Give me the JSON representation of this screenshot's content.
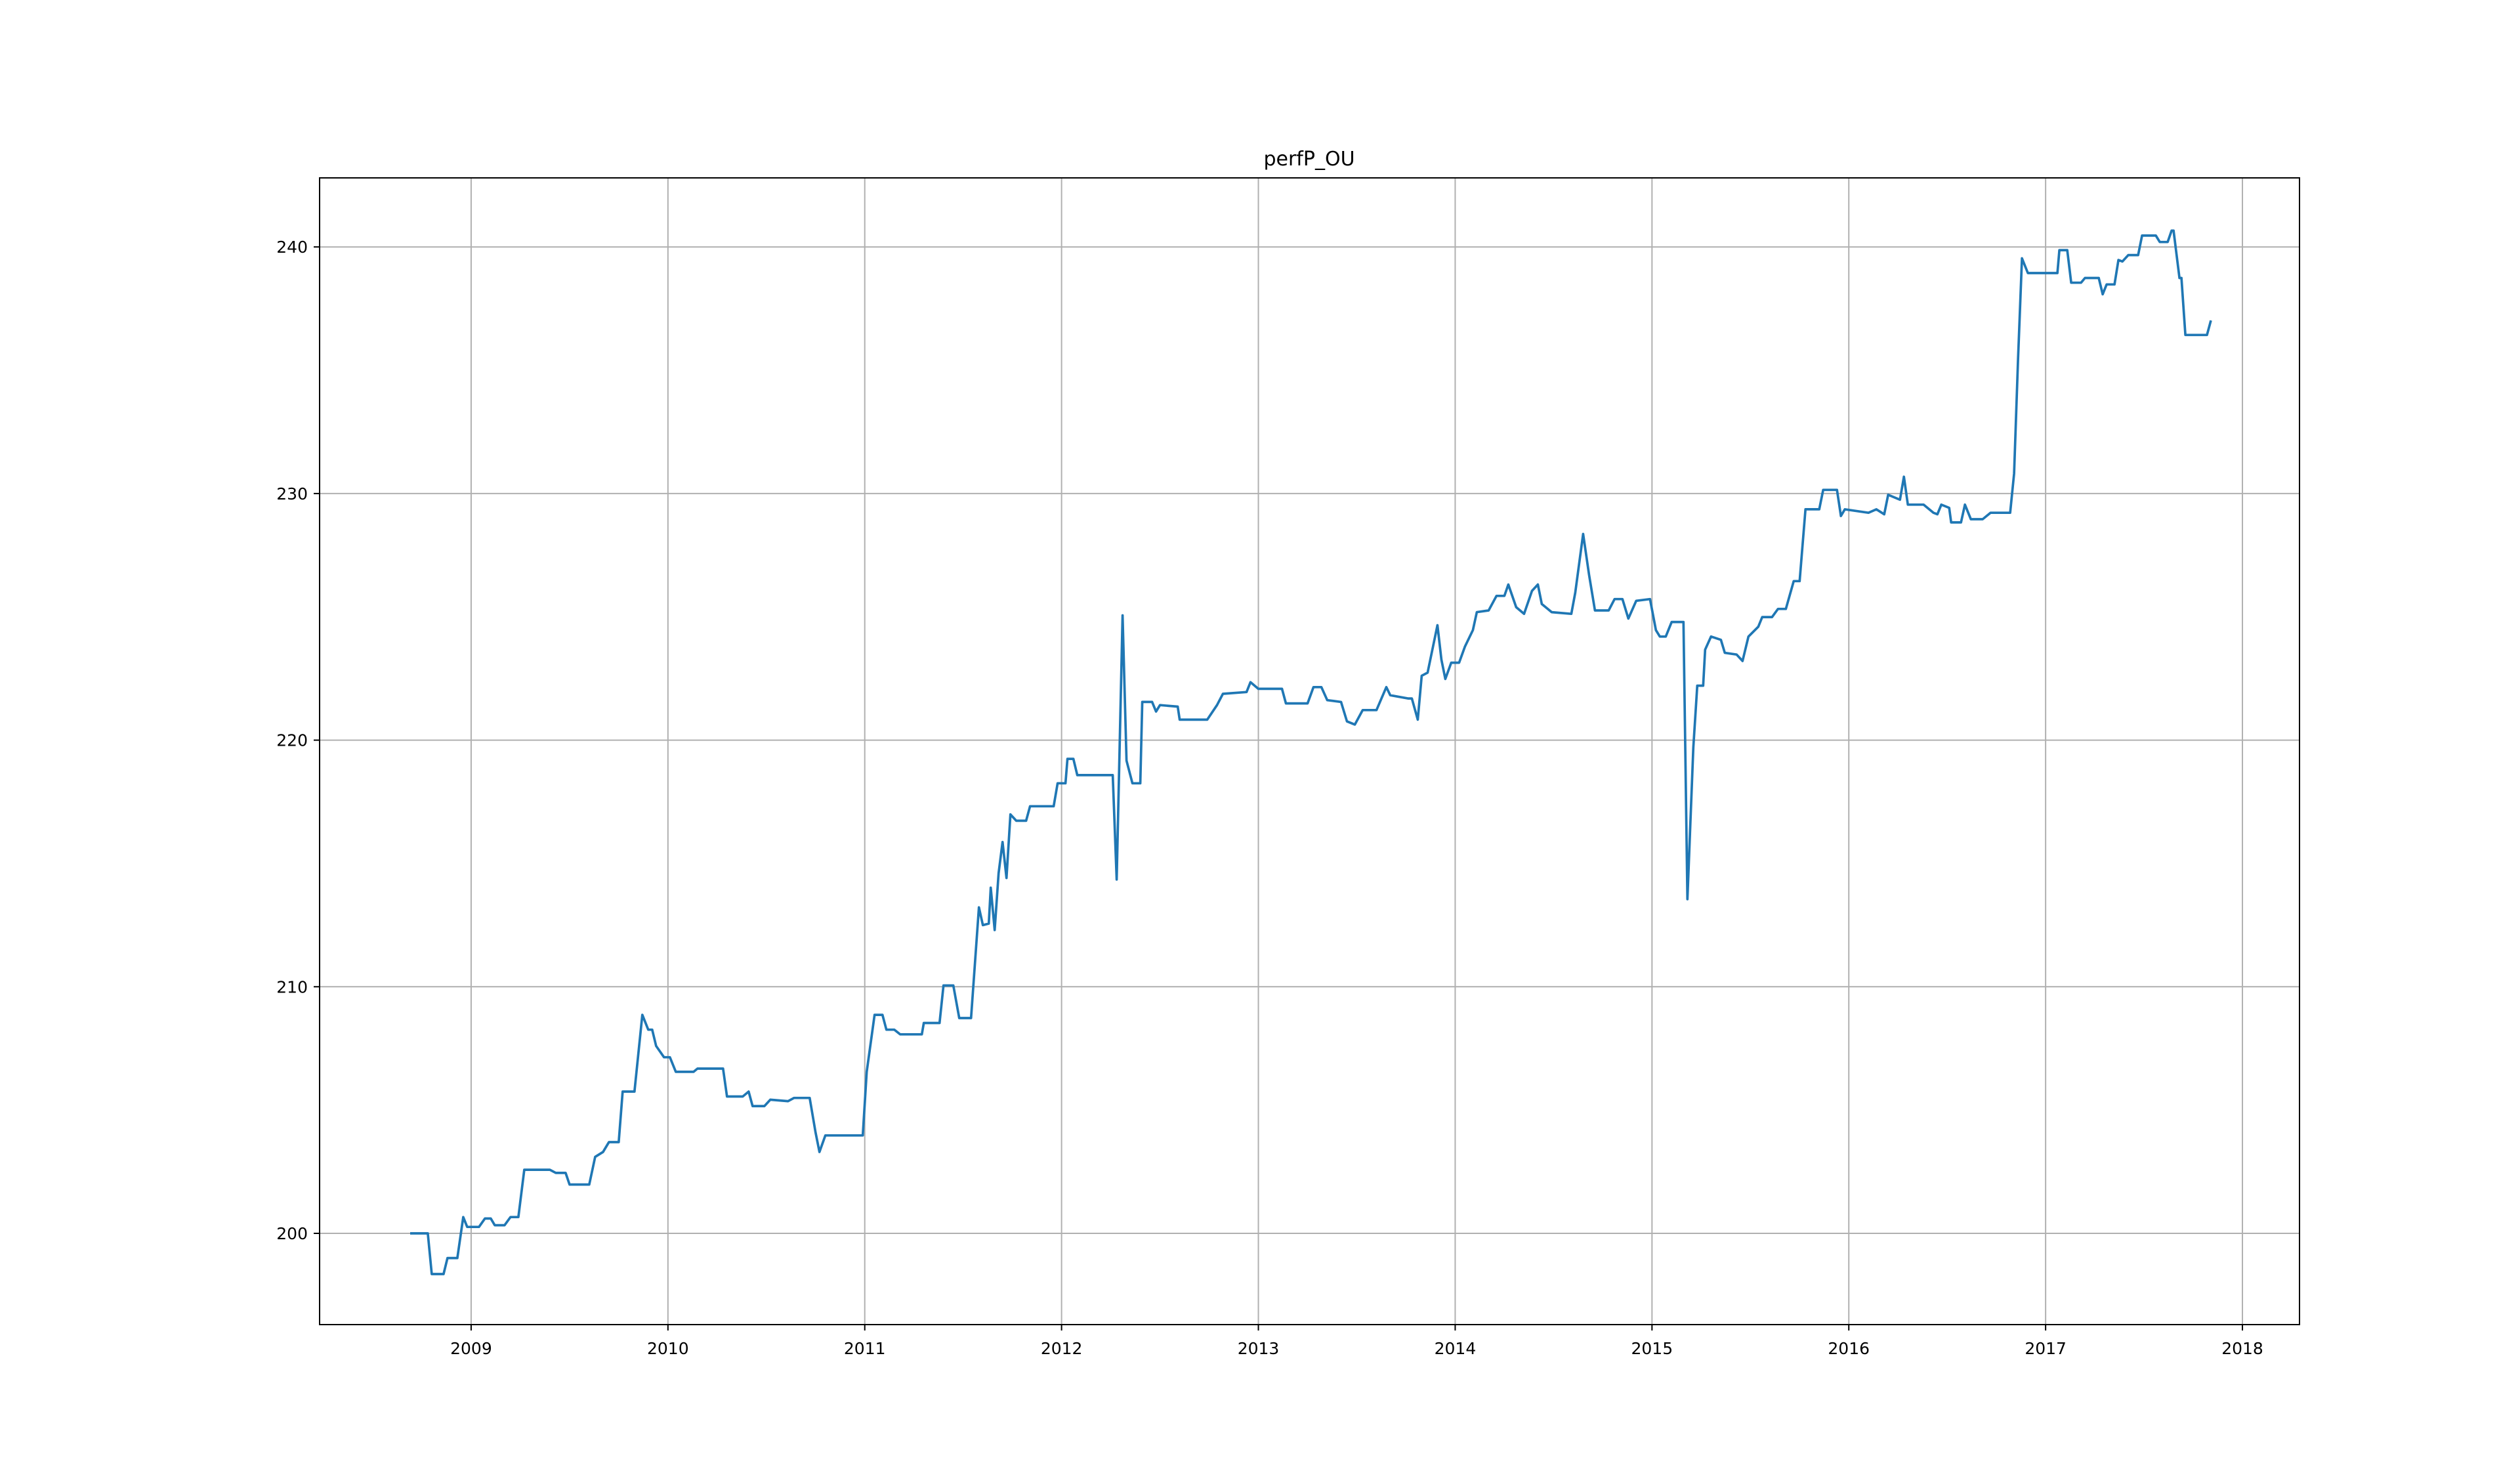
{
  "chart_data": {
    "type": "line",
    "title": "perfP_OU",
    "color": "#1f77b4",
    "grid": true,
    "xlim": [
      2008.23,
      2018.29
    ],
    "ylim": [
      196.3,
      242.8
    ],
    "xticks": [
      2009,
      2010,
      2011,
      2012,
      2013,
      2014,
      2015,
      2016,
      2017,
      2018
    ],
    "yticks": [
      200,
      210,
      220,
      230,
      240
    ],
    "x": [
      2008.69,
      2008.78,
      2008.8,
      2008.86,
      2008.88,
      2008.93,
      2008.96,
      2008.98,
      2009.04,
      2009.07,
      2009.1,
      2009.12,
      2009.17,
      2009.2,
      2009.24,
      2009.27,
      2009.4,
      2009.43,
      2009.48,
      2009.5,
      2009.6,
      2009.63,
      2009.67,
      2009.7,
      2009.75,
      2009.77,
      2009.83,
      2009.87,
      2009.9,
      2009.92,
      2009.94,
      2009.98,
      2010.01,
      2010.04,
      2010.13,
      2010.15,
      2010.28,
      2010.3,
      2010.38,
      2010.41,
      2010.43,
      2010.49,
      2010.52,
      2010.61,
      2010.64,
      2010.72,
      2010.75,
      2010.77,
      2010.8,
      2010.99,
      2011.01,
      2011.05,
      2011.09,
      2011.11,
      2011.15,
      2011.18,
      2011.29,
      2011.3,
      2011.38,
      2011.4,
      2011.45,
      2011.48,
      2011.54,
      2011.58,
      2011.6,
      2011.63,
      2011.64,
      2011.66,
      2011.68,
      2011.7,
      2011.72,
      2011.74,
      2011.77,
      2011.82,
      2011.84,
      2011.96,
      2011.98,
      2012.02,
      2012.03,
      2012.06,
      2012.08,
      2012.26,
      2012.28,
      2012.31,
      2012.33,
      2012.36,
      2012.4,
      2012.41,
      2012.46,
      2012.48,
      2012.5,
      2012.59,
      2012.6,
      2012.74,
      2012.79,
      2012.82,
      2012.94,
      2012.96,
      2013.0,
      2013.12,
      2013.14,
      2013.25,
      2013.28,
      2013.32,
      2013.35,
      2013.42,
      2013.45,
      2013.49,
      2013.53,
      2013.6,
      2013.65,
      2013.67,
      2013.76,
      2013.78,
      2013.81,
      2013.83,
      2013.86,
      2013.91,
      2013.93,
      2013.95,
      2013.98,
      2014.02,
      2014.05,
      2014.09,
      2014.11,
      2014.17,
      2014.21,
      2014.25,
      2014.27,
      2014.31,
      2014.35,
      2014.39,
      2014.42,
      2014.44,
      2014.49,
      2014.59,
      2014.61,
      2014.65,
      2014.68,
      2014.71,
      2014.78,
      2014.81,
      2014.85,
      2014.88,
      2014.92,
      2014.99,
      2015.02,
      2015.04,
      2015.07,
      2015.1,
      2015.16,
      2015.18,
      2015.21,
      2015.23,
      2015.26,
      2015.27,
      2015.3,
      2015.35,
      2015.37,
      2015.43,
      2015.46,
      2015.49,
      2015.54,
      2015.56,
      2015.61,
      2015.64,
      2015.68,
      2015.72,
      2015.75,
      2015.78,
      2015.85,
      2015.87,
      2015.94,
      2015.96,
      2015.98,
      2016.1,
      2016.14,
      2016.18,
      2016.2,
      2016.26,
      2016.28,
      2016.3,
      2016.38,
      2016.43,
      2016.45,
      2016.47,
      2016.51,
      2016.52,
      2016.57,
      2016.59,
      2016.62,
      2016.68,
      2016.72,
      2016.82,
      2016.84,
      2016.86,
      2016.88,
      2016.91,
      2017.06,
      2017.07,
      2017.11,
      2017.13,
      2017.18,
      2017.2,
      2017.27,
      2017.29,
      2017.31,
      2017.35,
      2017.37,
      2017.39,
      2017.42,
      2017.47,
      2017.49,
      2017.56,
      2017.58,
      2017.62,
      2017.64,
      2017.65,
      2017.68,
      2017.69,
      2017.71,
      2017.82,
      2017.84
    ],
    "values": [
      200,
      200,
      198.35,
      198.35,
      199.0,
      199.0,
      200.66,
      200.26,
      200.26,
      200.6,
      200.6,
      200.33,
      200.33,
      200.66,
      200.66,
      202.58,
      202.58,
      202.45,
      202.45,
      201.98,
      201.98,
      203.1,
      203.3,
      203.7,
      203.7,
      205.75,
      205.75,
      208.86,
      208.26,
      208.26,
      207.6,
      207.14,
      207.14,
      206.55,
      206.55,
      206.68,
      206.68,
      205.55,
      205.55,
      205.75,
      205.16,
      205.16,
      205.42,
      205.36,
      205.49,
      205.49,
      204.1,
      203.3,
      203.97,
      203.97,
      206.55,
      208.86,
      208.86,
      208.26,
      208.26,
      208.07,
      208.07,
      208.53,
      208.53,
      210.05,
      210.05,
      208.73,
      208.73,
      213.22,
      212.5,
      212.56,
      214.02,
      212.3,
      214.61,
      215.87,
      214.41,
      216.99,
      216.73,
      216.73,
      217.32,
      217.32,
      218.25,
      218.25,
      219.24,
      219.24,
      218.58,
      218.58,
      214.35,
      225.06,
      219.17,
      218.25,
      218.25,
      221.55,
      221.55,
      221.16,
      221.42,
      221.36,
      220.83,
      220.83,
      221.42,
      221.88,
      221.95,
      222.35,
      222.08,
      222.08,
      221.49,
      221.49,
      222.15,
      222.15,
      221.62,
      221.55,
      220.76,
      220.63,
      221.22,
      221.22,
      222.15,
      221.82,
      221.69,
      221.69,
      220.83,
      222.61,
      222.74,
      224.66,
      223.27,
      222.48,
      223.14,
      223.14,
      223.8,
      224.46,
      225.19,
      225.26,
      225.85,
      225.85,
      226.31,
      225.39,
      225.12,
      226.05,
      226.31,
      225.52,
      225.19,
      225.12,
      225.98,
      228.36,
      226.71,
      225.26,
      225.26,
      225.72,
      225.72,
      224.93,
      225.65,
      225.72,
      224.46,
      224.2,
      224.2,
      224.79,
      224.79,
      213.55,
      219.7,
      222.21,
      222.21,
      223.67,
      224.2,
      224.07,
      223.54,
      223.47,
      223.21,
      224.2,
      224.6,
      224.99,
      224.99,
      225.32,
      225.32,
      226.45,
      226.45,
      229.36,
      229.36,
      230.15,
      230.15,
      229.09,
      229.36,
      229.22,
      229.36,
      229.16,
      229.95,
      229.75,
      230.68,
      229.55,
      229.55,
      229.22,
      229.16,
      229.55,
      229.42,
      228.83,
      228.83,
      229.55,
      228.96,
      228.96,
      229.22,
      229.22,
      230.81,
      235.44,
      239.54,
      238.94,
      238.94,
      239.87,
      239.87,
      238.55,
      238.55,
      238.74,
      238.74,
      238.08,
      238.48,
      238.48,
      239.47,
      239.41,
      239.67,
      239.67,
      240.46,
      240.46,
      240.2,
      240.2,
      240.66,
      240.66,
      238.74,
      238.74,
      236.43,
      236.43,
      237.02
    ]
  }
}
